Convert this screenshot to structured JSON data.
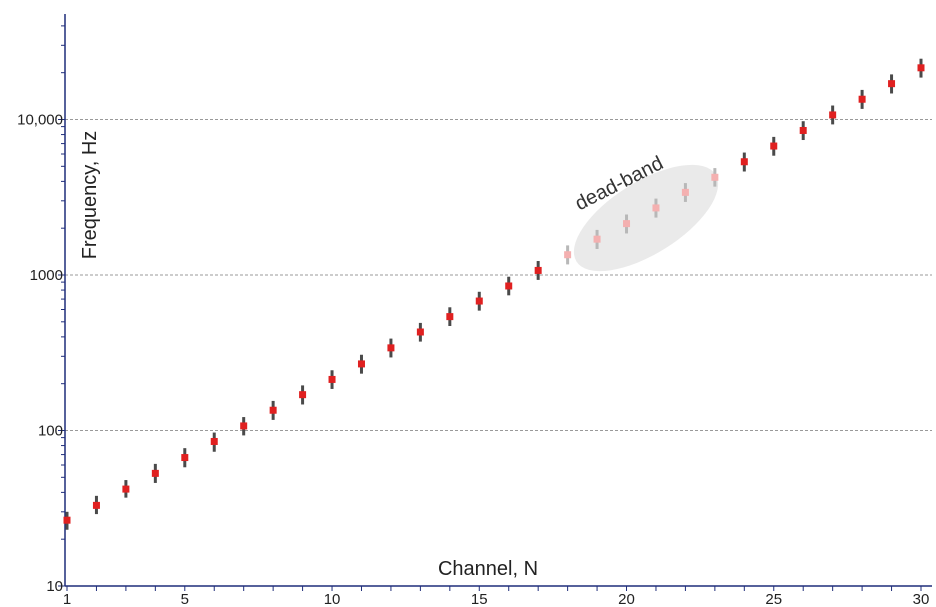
{
  "chart_data": {
    "type": "scatter",
    "xlabel": "Channel, N",
    "ylabel": "Frequency, Hz",
    "x_ticks": [
      "1",
      "5",
      "10",
      "15",
      "20",
      "25",
      "30"
    ],
    "y_ticks": [
      "10",
      "100",
      "1000",
      "10,000"
    ],
    "x_range": [
      1,
      30
    ],
    "y_range": [
      10,
      50000
    ],
    "y_scale": "log",
    "grid": "horizontal dashed lines at 100, 1000 and 10,000",
    "annotation": "dead-band",
    "dead_band_channels": [
      18,
      23
    ],
    "colors": {
      "point": "#e02020",
      "point_faded": "#f4b0b0",
      "error_bar": "#4a4a4a",
      "error_bar_faded": "#b8b8b8",
      "grid": "#999999",
      "axis": "#1f2d7a",
      "ellipse": "#e6e6e6"
    },
    "series": [
      {
        "x": [
          1,
          2,
          3,
          4,
          5,
          6,
          7,
          8,
          9,
          10,
          11,
          12,
          13,
          14,
          15,
          16,
          17,
          18,
          19,
          20,
          21,
          22,
          23,
          24,
          25,
          26,
          27,
          28,
          29,
          30
        ],
        "y": [
          26.5,
          33,
          42,
          53,
          67,
          85,
          107,
          135,
          170,
          213,
          268,
          340,
          430,
          540,
          680,
          850,
          1070,
          1350,
          1700,
          2140,
          2700,
          3400,
          4250,
          5350,
          6750,
          8500,
          10700,
          13500,
          17000,
          21500
        ],
        "err_low": [
          23,
          29,
          37,
          46,
          58,
          73,
          93,
          117,
          147,
          185,
          232,
          295,
          373,
          470,
          590,
          740,
          930,
          1170,
          1470,
          1850,
          2340,
          2950,
          3700,
          4630,
          5850,
          7380,
          9300,
          11700,
          14700,
          18600
        ],
        "err_high": [
          30,
          38,
          48,
          61,
          77,
          97,
          122,
          155,
          195,
          244,
          307,
          390,
          492,
          620,
          780,
          975,
          1230,
          1550,
          1950,
          2450,
          3100,
          3900,
          4870,
          6130,
          7730,
          9750,
          12300,
          15500,
          19500,
          24600
        ]
      }
    ]
  }
}
